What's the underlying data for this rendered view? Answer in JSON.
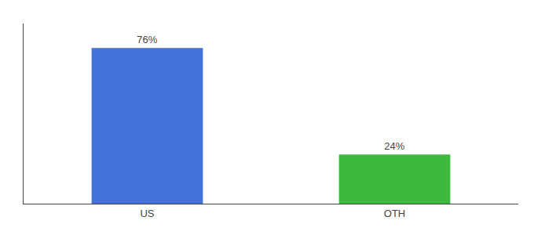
{
  "chart_data": {
    "type": "bar",
    "categories": [
      "US",
      "OTH"
    ],
    "values": [
      76,
      24
    ],
    "value_labels": [
      "76%",
      "24%"
    ],
    "colors": [
      "#4472db",
      "#3dba3d"
    ],
    "ylim": [
      0,
      88
    ],
    "data_labels": true,
    "tick_labels": "x",
    "grid": false
  }
}
